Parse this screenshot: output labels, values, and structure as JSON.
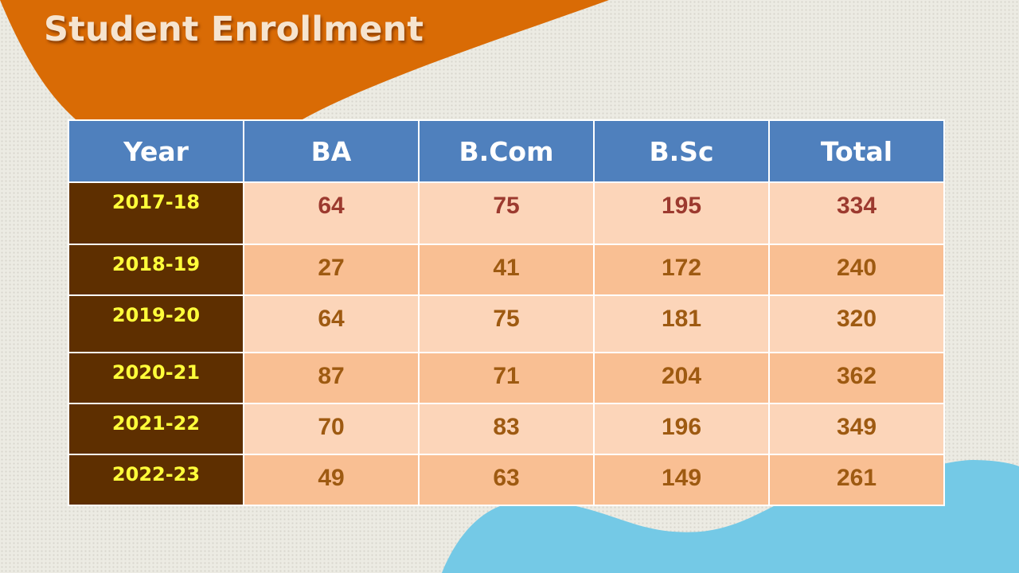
{
  "title": "Student Enrollment",
  "colors": {
    "header_bg": "#4f80bd",
    "year_bg": "#5e2f00",
    "year_text": "#ffff3a",
    "row_light": "#fcd5b9",
    "row_dark": "#f9bf93",
    "accent_orange": "#d96b05",
    "accent_blue": "#74c9e6"
  },
  "table": {
    "headers": [
      "Year",
      "BA",
      "B.Com",
      "B.Sc",
      "Total"
    ],
    "rows": [
      {
        "year": "2017-18",
        "ba": "64",
        "bcom": "75",
        "bsc": "195",
        "total": "334"
      },
      {
        "year": "2018-19",
        "ba": "27",
        "bcom": "41",
        "bsc": "172",
        "total": "240"
      },
      {
        "year": "2019-20",
        "ba": "64",
        "bcom": "75",
        "bsc": "181",
        "total": "320"
      },
      {
        "year": "2020-21",
        "ba": "87",
        "bcom": "71",
        "bsc": "204",
        "total": "362"
      },
      {
        "year": "2021-22",
        "ba": "70",
        "bcom": "83",
        "bsc": "196",
        "total": "349"
      },
      {
        "year": "2022-23",
        "ba": "49",
        "bcom": "63",
        "bsc": "149",
        "total": "261"
      }
    ]
  }
}
